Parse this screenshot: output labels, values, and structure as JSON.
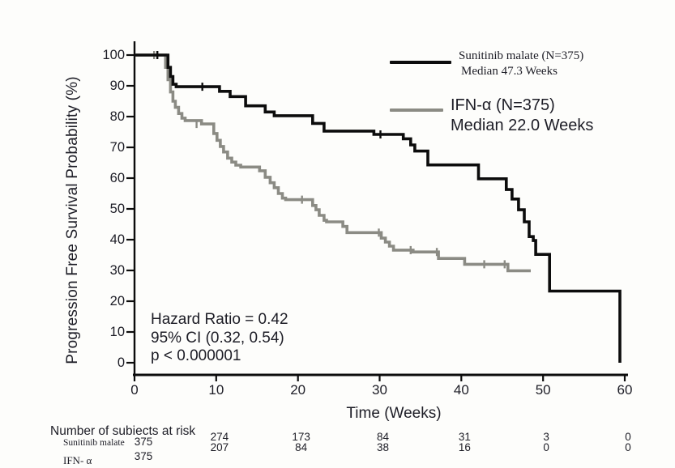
{
  "figure": {
    "background": "#fdfdfb",
    "ink": "#0c0c0c",
    "text_color": "#1d1d26"
  },
  "chart_data": {
    "type": "line",
    "subtype": "kaplan-meier-step",
    "title": "",
    "xlabel": "Time (Weeks)",
    "ylabel": "Progression Free Survival Probability (%)",
    "xlim": [
      0,
      60
    ],
    "ylim": [
      0,
      100
    ],
    "x_ticks": [
      0,
      10,
      20,
      30,
      40,
      50,
      60
    ],
    "y_ticks": [
      0,
      10,
      20,
      30,
      40,
      50,
      60,
      70,
      80,
      90,
      100
    ],
    "grid": false,
    "legend_position": "top-right-inside",
    "series": [
      {
        "id": "sunitinib",
        "name": "Sunitinib malate (N=375)",
        "median_weeks": 47.3,
        "color": "#0c0c0c",
        "points": [
          [
            0,
            100
          ],
          [
            3.8,
            100
          ],
          [
            4.1,
            96
          ],
          [
            4.4,
            93
          ],
          [
            4.7,
            90.5
          ],
          [
            5.1,
            89.7
          ],
          [
            10.4,
            88.2
          ],
          [
            11.7,
            86.5
          ],
          [
            13.6,
            83.5
          ],
          [
            16.0,
            81.5
          ],
          [
            17.1,
            80.3
          ],
          [
            21.8,
            77.8
          ],
          [
            23.2,
            75.3
          ],
          [
            29.3,
            74.2
          ],
          [
            32.9,
            72.8
          ],
          [
            33.8,
            70.8
          ],
          [
            34.3,
            68.8
          ],
          [
            35.9,
            64.3
          ],
          [
            42.1,
            59.8
          ],
          [
            45.5,
            56.3
          ],
          [
            46.2,
            53.2
          ],
          [
            47.0,
            49.7
          ],
          [
            47.7,
            45.8
          ],
          [
            48.3,
            41.0
          ],
          [
            48.8,
            39.7
          ],
          [
            49.1,
            35.2
          ],
          [
            50.8,
            23.3
          ],
          [
            59.4,
            23.3
          ],
          [
            59.4,
            0
          ]
        ],
        "censor_marks": [
          [
            2.8,
            100
          ],
          [
            8.3,
            89.7
          ],
          [
            30.1,
            74.2
          ]
        ]
      },
      {
        "id": "ifn",
        "name": "IFN-α (N=375)",
        "median_weeks": 22.0,
        "color": "#8b8b84",
        "points": [
          [
            0,
            100
          ],
          [
            3.4,
            100
          ],
          [
            3.8,
            96
          ],
          [
            4.1,
            92
          ],
          [
            4.4,
            88
          ],
          [
            4.7,
            85
          ],
          [
            5.0,
            83
          ],
          [
            5.4,
            81
          ],
          [
            5.8,
            79.5
          ],
          [
            6.2,
            78.7
          ],
          [
            8.2,
            77.6
          ],
          [
            9.7,
            74.5
          ],
          [
            10.1,
            72.3
          ],
          [
            10.5,
            70.3
          ],
          [
            10.9,
            68.5
          ],
          [
            11.4,
            66.5
          ],
          [
            11.9,
            65.2
          ],
          [
            12.4,
            64.2
          ],
          [
            13.0,
            63.6
          ],
          [
            15.3,
            62.4
          ],
          [
            16.0,
            60.3
          ],
          [
            16.6,
            58.5
          ],
          [
            17.1,
            56.9
          ],
          [
            17.6,
            55.0
          ],
          [
            18.1,
            53.5
          ],
          [
            18.5,
            53.0
          ],
          [
            21.8,
            51.1
          ],
          [
            22.2,
            49.7
          ],
          [
            22.6,
            47.9
          ],
          [
            23.2,
            46.3
          ],
          [
            23.5,
            45.8
          ],
          [
            25.5,
            44.3
          ],
          [
            26.0,
            42.3
          ],
          [
            30.2,
            40.5
          ],
          [
            30.7,
            39.2
          ],
          [
            31.2,
            37.9
          ],
          [
            31.7,
            36.6
          ],
          [
            34.1,
            36.0
          ],
          [
            37.2,
            33.9
          ],
          [
            40.4,
            32.0
          ],
          [
            45.7,
            29.9
          ],
          [
            48.5,
            29.9
          ]
        ],
        "censor_marks": [
          [
            2.4,
            100
          ],
          [
            7.6,
            77.6
          ],
          [
            20.5,
            53.0
          ],
          [
            29.9,
            42.3
          ],
          [
            33.8,
            36.6
          ],
          [
            37.0,
            36.0
          ],
          [
            42.8,
            32.0
          ],
          [
            45.3,
            32.0
          ]
        ]
      }
    ],
    "annotation": {
      "lines": [
        "Hazard Ratio = 0.42",
        "95% CI (0.32, 0.54)",
        "p < 0.000001"
      ]
    }
  },
  "legend": {
    "entries": [
      {
        "label": "Sunitinib malate (N=375)",
        "sublabel": "Median 47.3 Weeks"
      },
      {
        "label": "IFN-α (N=375)",
        "sublabel": "Median 22.0 Weeks"
      }
    ]
  },
  "risk_table": {
    "title": "Number of subiects at risk",
    "rows": [
      {
        "label": "Sunitinib malate",
        "values": [
          "375",
          "274",
          "173",
          "84",
          "31",
          "3",
          "0"
        ]
      },
      {
        "label": "IFN- α",
        "values": [
          "375",
          "207",
          "84",
          "38",
          "16",
          "0",
          "0"
        ]
      }
    ]
  }
}
